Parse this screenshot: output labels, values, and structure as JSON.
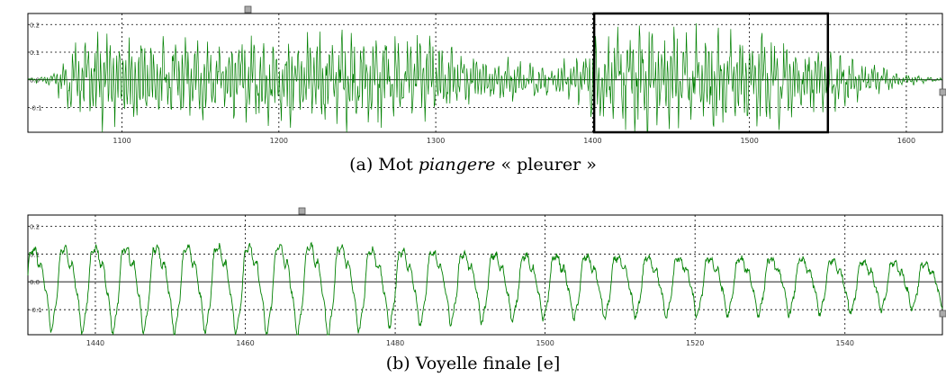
{
  "chart_data": [
    {
      "type": "line",
      "caption": {
        "prefix": "(a) Mot ",
        "word": "piangere",
        "suffix": " « pleurer »"
      },
      "xlim": [
        1040,
        1623
      ],
      "ylim": [
        -0.19,
        0.24
      ],
      "x_ticks": [
        1100,
        1200,
        1300,
        1400,
        1500,
        1600
      ],
      "y_ticks": [
        0.2,
        0.1,
        0.0,
        -0.1
      ],
      "y_tick_labels": [
        "0.2",
        "0.1",
        "0.0",
        "-0.1"
      ],
      "grid": true,
      "series_color": "#008000",
      "highlight": {
        "x_range": [
          1401,
          1550
        ],
        "color": "#000000"
      },
      "waveform_envelope": [
        {
          "x": 1040,
          "amp": 0.005
        },
        {
          "x": 1055,
          "amp": 0.02
        },
        {
          "x": 1068,
          "amp": 0.12
        },
        {
          "x": 1080,
          "amp": 0.16
        },
        {
          "x": 1100,
          "amp": 0.14
        },
        {
          "x": 1150,
          "amp": 0.13
        },
        {
          "x": 1200,
          "amp": 0.14
        },
        {
          "x": 1240,
          "amp": 0.16
        },
        {
          "x": 1280,
          "amp": 0.15
        },
        {
          "x": 1310,
          "amp": 0.11
        },
        {
          "x": 1330,
          "amp": 0.07
        },
        {
          "x": 1360,
          "amp": 0.06
        },
        {
          "x": 1385,
          "amp": 0.07
        },
        {
          "x": 1400,
          "amp": 0.13
        },
        {
          "x": 1430,
          "amp": 0.18
        },
        {
          "x": 1470,
          "amp": 0.17
        },
        {
          "x": 1520,
          "amp": 0.14
        },
        {
          "x": 1545,
          "amp": 0.11
        },
        {
          "x": 1570,
          "amp": 0.06
        },
        {
          "x": 1600,
          "amp": 0.02
        },
        {
          "x": 1623,
          "amp": 0.005
        }
      ]
    },
    {
      "type": "line",
      "caption": {
        "prefix": "(b) Voyelle finale ",
        "word": "",
        "suffix": "[e]"
      },
      "xlim": [
        1431,
        1553
      ],
      "ylim": [
        -0.19,
        0.24
      ],
      "x_ticks": [
        1440,
        1460,
        1480,
        1500,
        1520,
        1540
      ],
      "y_ticks": [
        0.2,
        0.1,
        0.0,
        -0.1
      ],
      "y_tick_labels": [
        "0.2",
        "0.1",
        "0.0",
        "-0.1"
      ],
      "grid": true,
      "series_color": "#008000",
      "glottal_period": 4.1,
      "waveform_envelope": [
        {
          "x": 1431,
          "amp": 0.15
        },
        {
          "x": 1440,
          "amp": 0.16
        },
        {
          "x": 1455,
          "amp": 0.16
        },
        {
          "x": 1471,
          "amp": 0.17
        },
        {
          "x": 1480,
          "amp": 0.14
        },
        {
          "x": 1500,
          "amp": 0.12
        },
        {
          "x": 1520,
          "amp": 0.11
        },
        {
          "x": 1540,
          "amp": 0.1
        },
        {
          "x": 1553,
          "amp": 0.08
        }
      ]
    }
  ]
}
